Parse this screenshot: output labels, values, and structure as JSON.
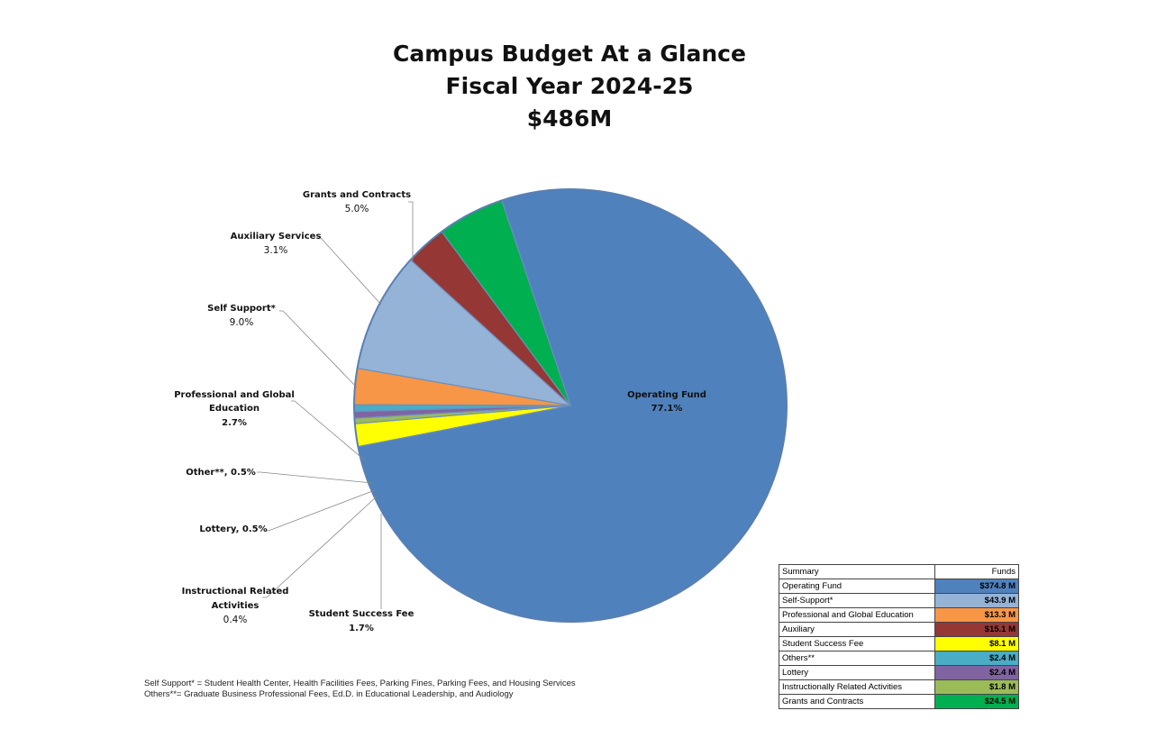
{
  "chart_data": {
    "type": "pie",
    "title": "Campus Budget At a Glance",
    "subtitle": "Fiscal Year 2024-25",
    "total": "$486M",
    "slices": [
      {
        "label": "Operating Fund",
        "pct_label": "77.1%",
        "value": 77.1,
        "color": "#4F81BD"
      },
      {
        "label": "Student Success Fee",
        "pct_label": "1.7%",
        "value": 1.7,
        "color": "#FFFF00"
      },
      {
        "label": "Instructional Related Activities",
        "pct_label": "0.4%",
        "value": 0.4,
        "color": "#9BBB59"
      },
      {
        "label": "Lottery",
        "pct_label": "0.5%",
        "value": 0.5,
        "color": "#8064A2"
      },
      {
        "label": "Other**",
        "pct_label": "0.5%",
        "value": 0.5,
        "color": "#4BACC6"
      },
      {
        "label": "Professional and Global Education",
        "pct_label": "2.7%",
        "value": 2.7,
        "color": "#F79646"
      },
      {
        "label": "Self Support*",
        "pct_label": "9.0%",
        "value": 9.0,
        "color": "#95B3D7"
      },
      {
        "label": "Auxiliary Services",
        "pct_label": "3.1%",
        "value": 3.1,
        "color": "#953735"
      },
      {
        "label": "Grants and Contracts",
        "pct_label": "5.0%",
        "value": 5.0,
        "color": "#00B050"
      }
    ],
    "labels": {
      "operating": {
        "name": "Operating Fund",
        "pct": "77.1%"
      },
      "grants": {
        "name": "Grants and Contracts",
        "pct": "5.0%"
      },
      "auxiliary": {
        "name": "Auxiliary Services",
        "pct": "3.1%"
      },
      "self_support": {
        "name": "Self Support*",
        "pct": "9.0%"
      },
      "pge_line1": "Professional and Global",
      "pge_line2": "Education",
      "pge_pct": "2.7%",
      "other": "Other**, 0.5%",
      "lottery": "Lottery, 0.5%",
      "ira_line1": "Instructional Related",
      "ira_line2": "Activities",
      "ira_pct": "0.4%",
      "ssf": {
        "name": "Student Success Fee",
        "pct": "1.7%"
      }
    }
  },
  "footnotes": {
    "line1": "Self Support* = Student Health Center, Health Facilities Fees, Parking Fines, Parking Fees, and Housing Services",
    "line2": "Others**= Graduate Business Professional Fees, Ed.D. in Educational Leadership, and Audiology"
  },
  "summary": {
    "header_category": "Summary",
    "header_funds": "Funds",
    "rows": [
      {
        "category": "Operating Fund",
        "funds": "$374.8 M",
        "color": "#4F81BD"
      },
      {
        "category": "Self-Support*",
        "funds": "$43.9 M",
        "color": "#95B3D7"
      },
      {
        "category": "Professional and Global Education",
        "funds": "$13.3 M",
        "color": "#F79646"
      },
      {
        "category": "Auxiliary",
        "funds": "$15.1 M",
        "color": "#953735"
      },
      {
        "category": "Student Success Fee",
        "funds": "$8.1 M",
        "color": "#FFFF00"
      },
      {
        "category": "Others**",
        "funds": "$2.4 M",
        "color": "#4BACC6"
      },
      {
        "category": "Lottery",
        "funds": "$2.4 M",
        "color": "#8064A2"
      },
      {
        "category": "Instructionally Related Activities",
        "funds": "$1.8 M",
        "color": "#9BBB59"
      },
      {
        "category": "Grants and Contracts",
        "funds": "$24.5 M",
        "color": "#00B050"
      }
    ]
  }
}
